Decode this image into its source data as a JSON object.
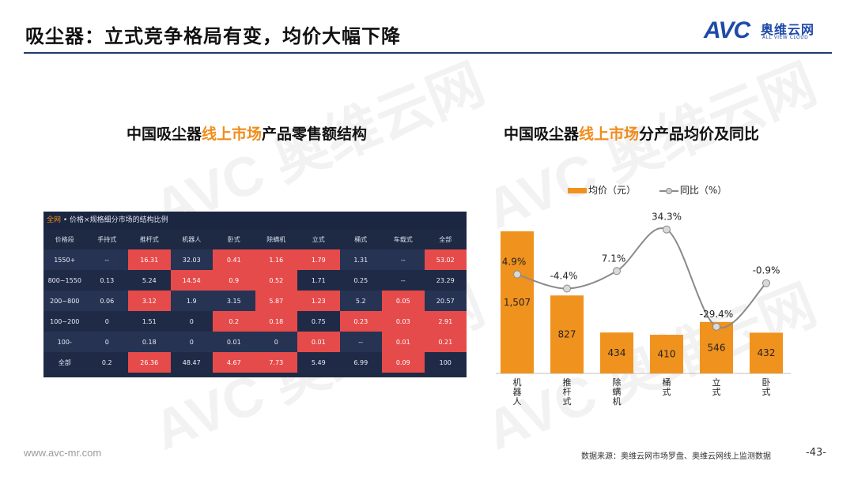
{
  "header": {
    "title": "吸尘器：立式竞争格局有变，均价大幅下降"
  },
  "logo": {
    "mark": "AVC",
    "cn": "奥维云网",
    "en": "ALL VIEW CLOUD",
    "color": "#1f4aa8"
  },
  "left_section": {
    "title_prefix": "中国吸尘器",
    "title_highlight": "线上市场",
    "title_suffix": "产品零售额结构"
  },
  "right_section": {
    "title_prefix": "中国吸尘器",
    "title_highlight": "线上市场",
    "title_suffix": "分产品均价及同比"
  },
  "table": {
    "caption_highlight": "全网",
    "caption_rest": " • 价格×规格细分市场的结构比例",
    "columns": [
      "价格段",
      "手持式",
      "推杆式",
      "机器人",
      "卧式",
      "除螨机",
      "立式",
      "桶式",
      "车载式",
      "全部"
    ],
    "rows": [
      [
        "1550+",
        "--",
        "16.31",
        "32.03",
        "0.41",
        "1.16",
        "1.79",
        "1.31",
        "--",
        "53.02"
      ],
      [
        "800~1550",
        "0.13",
        "5.24",
        "14.54",
        "0.9",
        "0.52",
        "1.71",
        "0.25",
        "--",
        "23.29"
      ],
      [
        "200~800",
        "0.06",
        "3.12",
        "1.9",
        "3.15",
        "5.87",
        "1.23",
        "5.2",
        "0.05",
        "20.57"
      ],
      [
        "100~200",
        "0",
        "1.51",
        "0",
        "0.2",
        "0.18",
        "0.75",
        "0.23",
        "0.03",
        "2.91"
      ],
      [
        "100-",
        "0",
        "0.18",
        "0",
        "0.01",
        "0",
        "0.01",
        "--",
        "0.01",
        "0.21"
      ],
      [
        "全部",
        "0.2",
        "26.36",
        "48.47",
        "4.67",
        "7.73",
        "5.49",
        "6.99",
        "0.09",
        "100"
      ]
    ],
    "highlight": [
      [
        0,
        0,
        1,
        0,
        1,
        1,
        1,
        0,
        0,
        1
      ],
      [
        0,
        0,
        0,
        1,
        1,
        1,
        0,
        0,
        0,
        0
      ],
      [
        0,
        0,
        1,
        0,
        0,
        1,
        1,
        0,
        1,
        0
      ],
      [
        0,
        0,
        0,
        0,
        1,
        1,
        0,
        1,
        1,
        1
      ],
      [
        0,
        0,
        0,
        0,
        0,
        0,
        1,
        0,
        1,
        1
      ],
      [
        0,
        0,
        1,
        0,
        1,
        1,
        0,
        0,
        1,
        0
      ]
    ],
    "colors": {
      "highlight": "#e64b4b",
      "base": "#1f2b46"
    }
  },
  "chart_data": {
    "type": "bar",
    "categories": [
      "机器人",
      "推杆式",
      "除螨机",
      "桶式",
      "立式",
      "卧式"
    ],
    "series": [
      {
        "name": "均价（元）",
        "type": "bar",
        "values": [
          1507,
          827,
          434,
          410,
          546,
          432
        ],
        "color": "#f0921e"
      },
      {
        "name": "同比（%）",
        "type": "line",
        "values": [
          4.9,
          -4.4,
          7.1,
          34.3,
          -29.4,
          -0.9
        ],
        "color": "#8a8a8a"
      }
    ],
    "bar_labels": [
      "1,507",
      "827",
      "434",
      "410",
      "546",
      "432"
    ],
    "line_labels": [
      "4.9%",
      "-4.4%",
      "7.1%",
      "34.3%",
      "-29.4%",
      "-0.9%"
    ],
    "ylim": [
      0,
      1700
    ],
    "line_ylim": [
      -60,
      45
    ],
    "legend_position": "top",
    "grid": false
  },
  "footer": {
    "url": "www.avc-mr.com",
    "source": "数据来源：奥维云网市场罗盘、奥维云网线上监测数据",
    "page": "-43-"
  }
}
